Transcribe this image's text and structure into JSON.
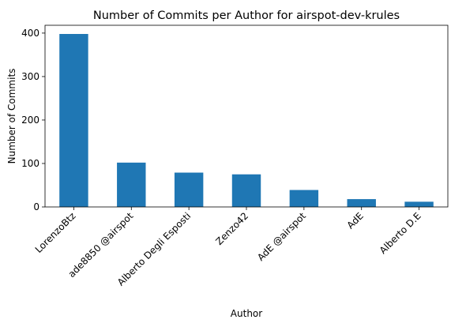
{
  "chart_data": {
    "type": "bar",
    "title": "Number of Commits per Author for airspot-dev-krules",
    "xlabel": "Author",
    "ylabel": "Number of Commits",
    "categories": [
      "LorenzoBtz",
      "ade8850 @airspot",
      "Alberto Degli Esposti",
      "Zenzo42",
      "AdE @airspot",
      "AdE",
      "Alberto D.E"
    ],
    "values": [
      398,
      102,
      79,
      75,
      39,
      18,
      12
    ],
    "ylim": [
      0,
      418
    ],
    "yticks": [
      0,
      100,
      200,
      300,
      400
    ],
    "grid": false,
    "bar_color": "#1f77b4"
  }
}
